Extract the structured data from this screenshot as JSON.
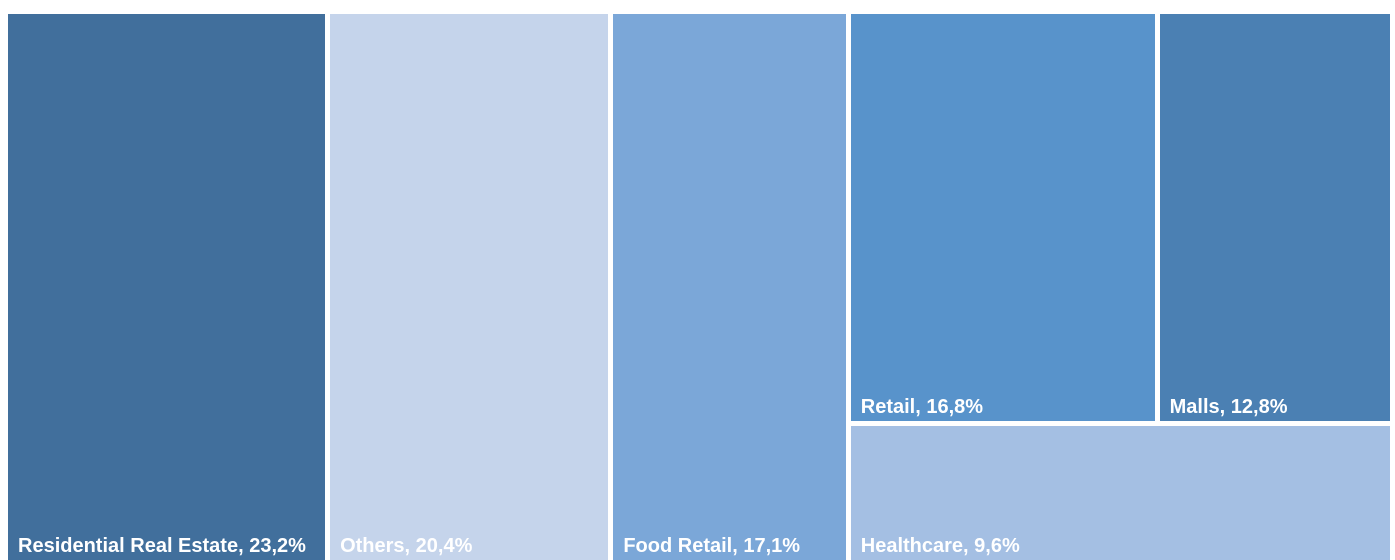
{
  "chart_data": {
    "type": "treemap",
    "value_labels": [
      "Residential Real Estate, 23,2%",
      "Others, 20,4%",
      "Food Retail, 17,1%",
      "Retail, 16,8%",
      "Malls, 12,8%",
      "Healthcare, 9,6%"
    ],
    "values": [
      23.2,
      20.4,
      17.1,
      16.8,
      12.8,
      9.6
    ],
    "colors": [
      "#416f9c",
      "#c5d4eb",
      "#7ba7d8",
      "#5893cb",
      "#4b80b3",
      "#a4bfe3"
    ]
  }
}
